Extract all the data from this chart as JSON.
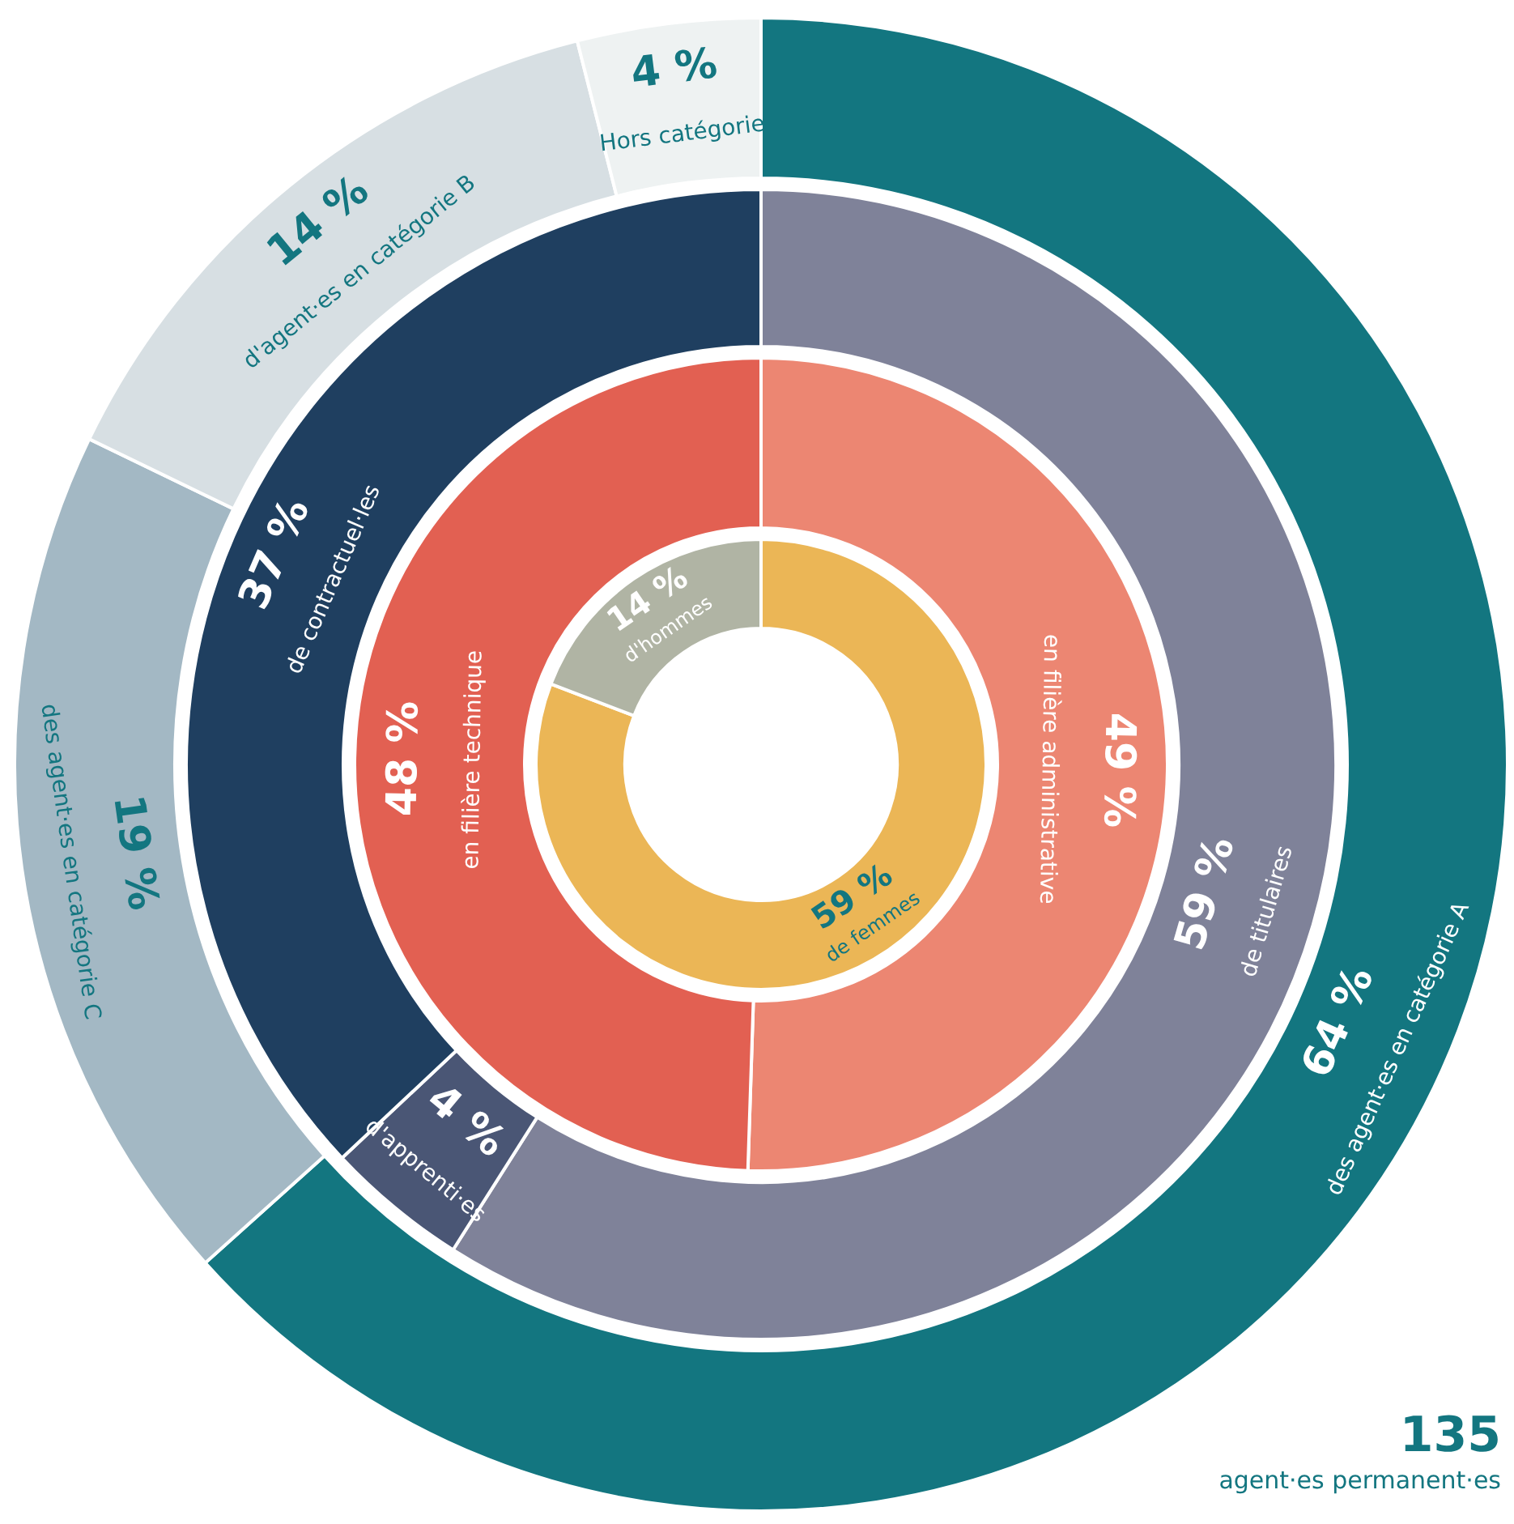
{
  "chart_data": [
    {
      "type": "donut",
      "categories": [
        "des agent·es en catégorie A",
        "des agent·es en catégorie C",
        "d'agent·es en catégorie B",
        "Hors catégorie"
      ],
      "values": [
        64,
        19,
        14,
        4
      ],
      "value_labels": [
        "64 %",
        "19 %",
        "14 %",
        "4 %"
      ],
      "colors": [
        "#137680",
        "#a3b8c4",
        "#d7dfe3",
        "#eef2f2"
      ],
      "annotations": [
        "135 agent·es permanent·es"
      ]
    },
    {
      "type": "donut",
      "categories": [
        "de titulaires",
        "d'apprenti·es",
        "de contractuel·les"
      ],
      "values": [
        59,
        4,
        37
      ],
      "value_labels": [
        "59 %",
        "4 %",
        "37 %"
      ],
      "colors": [
        "#7f8299",
        "#4a5675",
        "#1f3f60"
      ]
    },
    {
      "type": "donut",
      "categories": [
        "en filière administrative",
        "en filière technique"
      ],
      "values": [
        49,
        48
      ],
      "value_labels": [
        "49 %",
        "48 %"
      ],
      "colors": [
        "#ec8672",
        "#e26052"
      ]
    },
    {
      "type": "donut",
      "categories": [
        "de femmes",
        "d'hommes"
      ],
      "values": [
        59,
        14
      ],
      "value_labels": [
        "59 %",
        "14 %"
      ],
      "colors": [
        "#ebb656",
        "#b0b4a4"
      ]
    }
  ]
}
